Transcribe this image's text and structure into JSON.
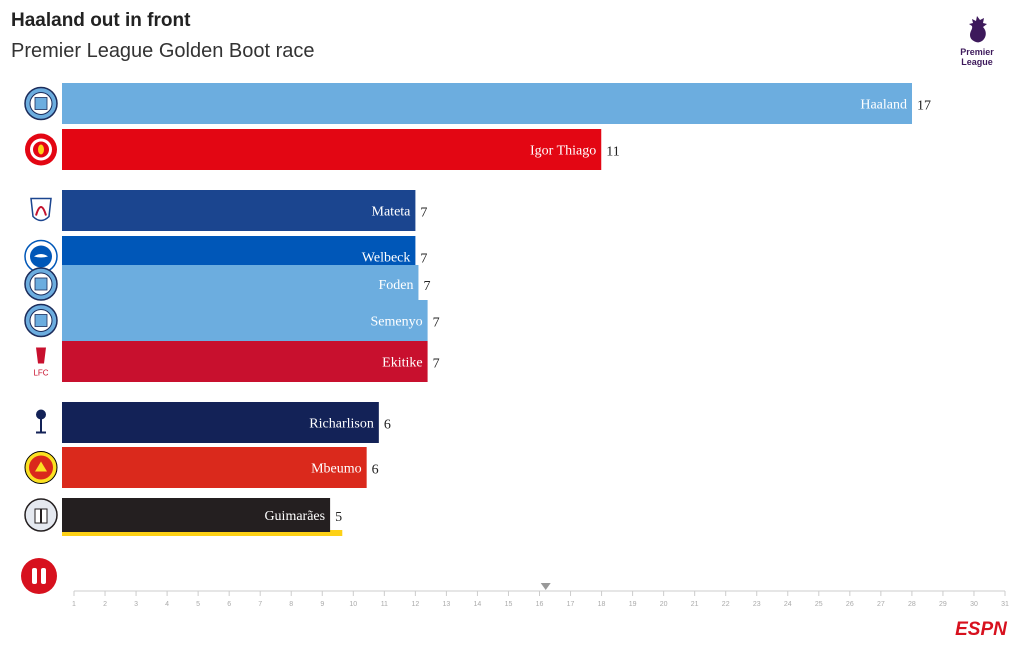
{
  "header": {
    "title": "Haaland out in front",
    "subtitle": "Premier League Golden Boot race"
  },
  "brand": {
    "pl_logo_text_1": "Premier",
    "pl_logo_text_2": "League",
    "pl_color": "#3d195b",
    "espn_text": "ESPN",
    "espn_color": "#d7111e"
  },
  "controls": {
    "pause_icon": "pause-icon",
    "pause_color": "#d7111e"
  },
  "chart_data": {
    "type": "bar",
    "orientation": "horizontal",
    "title": "Haaland out in front",
    "subtitle": "Premier League Golden Boot race",
    "categories": [
      "Haaland",
      "Igor Thiago",
      "Mateta",
      "Welbeck",
      "Foden",
      "Semenyo",
      "Ekitike",
      "Richarlison",
      "Mbeumo",
      "Guimarães"
    ],
    "values": [
      17,
      11,
      7,
      7,
      7,
      7,
      7,
      6,
      6,
      5
    ],
    "bar_lengths": [
      27.9,
      17.7,
      11.6,
      11.6,
      11.7,
      12.0,
      12.0,
      10.4,
      10.0,
      8.8
    ],
    "clubs": [
      "Manchester City",
      "Brentford",
      "Crystal Palace",
      "Brighton",
      "Manchester City",
      "Manchester City",
      "Liverpool",
      "Tottenham",
      "Manchester United",
      "Newcastle"
    ],
    "colors": [
      "#6caddf",
      "#e30613",
      "#1b458f",
      "#0057b8",
      "#6caddf",
      "#6caddf",
      "#c8102e",
      "#132257",
      "#da291c",
      "#241f20"
    ],
    "accent_colors": [
      "",
      "",
      "",
      "",
      "",
      "",
      "",
      "",
      "",
      "#fdd116"
    ],
    "accent_lengths": [
      0,
      0,
      0,
      0,
      0,
      0,
      0,
      0,
      0,
      9.2
    ],
    "timeline": {
      "ticks": [
        "1",
        "2",
        "3",
        "4",
        "5",
        "6",
        "7",
        "8",
        "9",
        "10",
        "11",
        "12",
        "13",
        "14",
        "15",
        "16",
        "17",
        "18",
        "19",
        "20",
        "21",
        "22",
        "23",
        "24",
        "25",
        "26",
        "27",
        "28",
        "29",
        "30",
        "31"
      ],
      "range": [
        0.4,
        31.5
      ],
      "current": 16.2
    },
    "xlim": [
      0,
      31.5
    ]
  }
}
